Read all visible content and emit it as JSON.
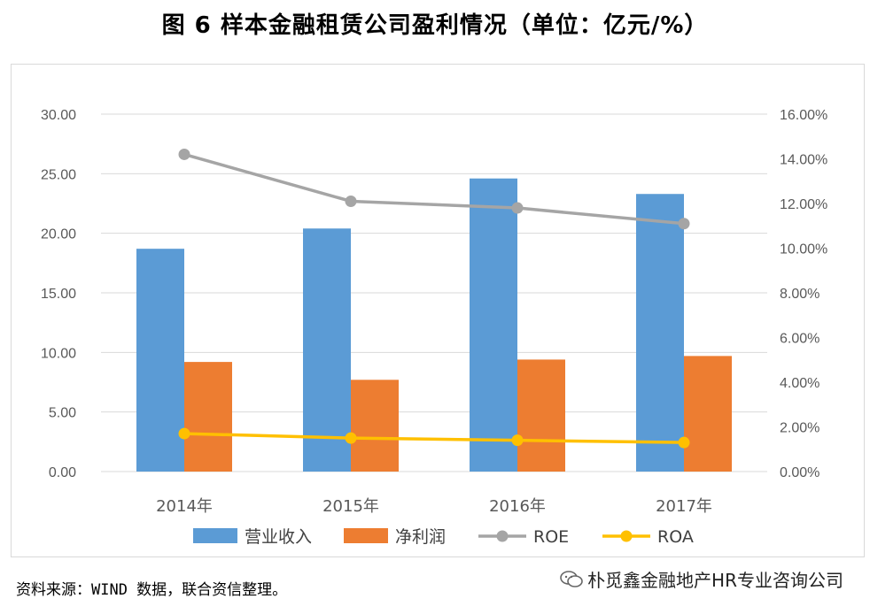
{
  "title": "图 6 样本金融租赁公司盈利情况（单位：亿元/%）",
  "source": "资料来源：WIND 数据，联合资信整理。",
  "watermark": {
    "text": "朴觅鑫金融地产HR专业咨询公司",
    "icon": "wechat-icon"
  },
  "colors": {
    "revenue": "#5B9BD5",
    "profit": "#ED7D31",
    "roe": "#A5A5A5",
    "roa": "#FFC000",
    "grid": "#D9D9D9"
  },
  "chart_data": {
    "type": "bar",
    "title": "图 6 样本金融租赁公司盈利情况（单位：亿元/%）",
    "categories": [
      "2014年",
      "2015年",
      "2016年",
      "2017年"
    ],
    "series": [
      {
        "name": "营业收入",
        "type": "bar",
        "axis": "left",
        "values": [
          18.7,
          20.4,
          24.6,
          23.3
        ]
      },
      {
        "name": "净利润",
        "type": "bar",
        "axis": "left",
        "values": [
          9.2,
          7.7,
          9.4,
          9.7
        ]
      },
      {
        "name": "ROE",
        "type": "line",
        "axis": "right",
        "values": [
          14.2,
          12.1,
          11.8,
          11.1
        ]
      },
      {
        "name": "ROA",
        "type": "line",
        "axis": "right",
        "values": [
          1.7,
          1.5,
          1.4,
          1.3
        ]
      }
    ],
    "y_left": {
      "min": 0,
      "max": 30,
      "step": 5,
      "ticks": [
        "0.00",
        "5.00",
        "10.00",
        "15.00",
        "20.00",
        "25.00",
        "30.00"
      ]
    },
    "y_right": {
      "min": 0,
      "max": 16,
      "step": 2,
      "ticks": [
        "0.00%",
        "2.00%",
        "4.00%",
        "6.00%",
        "8.00%",
        "10.00%",
        "12.00%",
        "14.00%",
        "16.00%"
      ]
    },
    "legend": [
      "营业收入",
      "净利润",
      "ROE",
      "ROA"
    ],
    "legend_position": "bottom",
    "grid": true
  }
}
